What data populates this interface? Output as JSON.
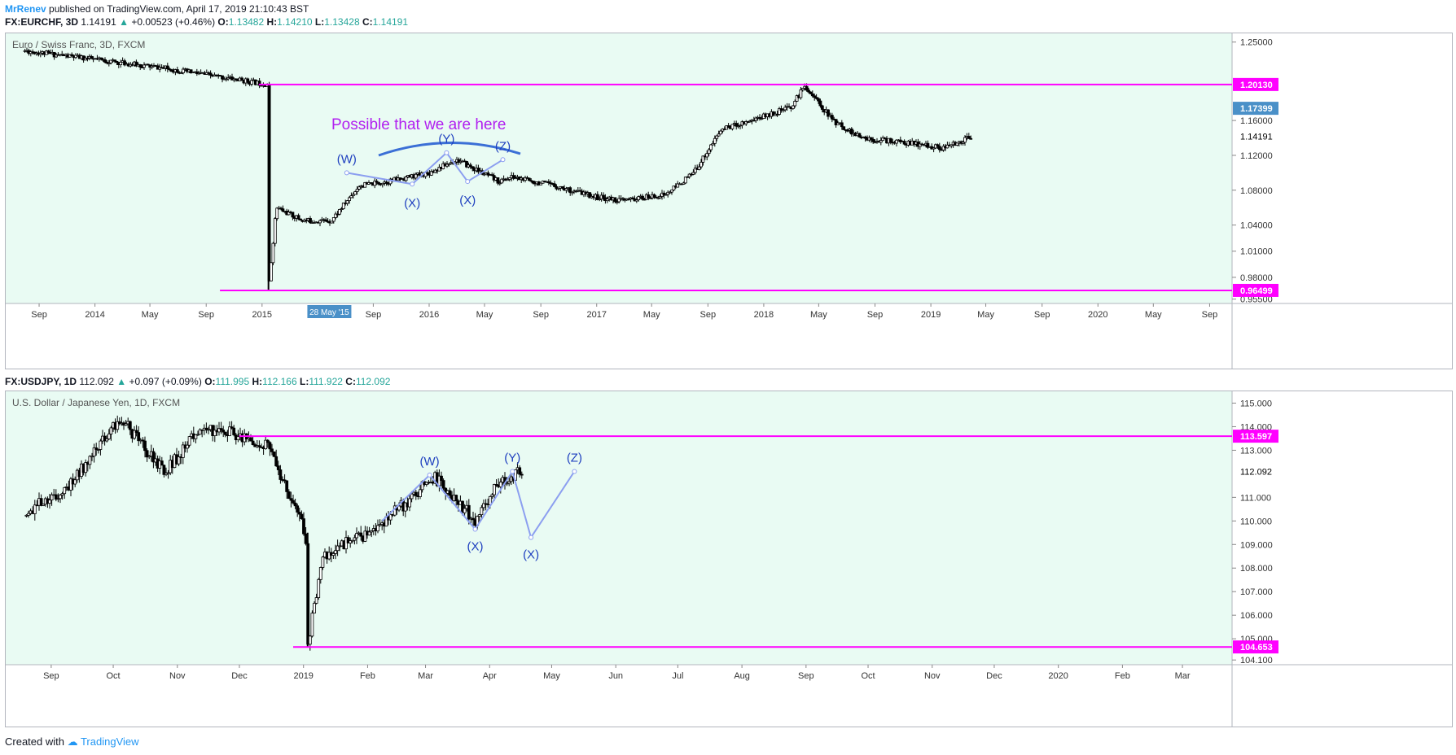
{
  "header": {
    "author": "MrRenev",
    "published": "published on TradingView.com, April 17, 2019 21:10:43 BST"
  },
  "colors": {
    "plot_bg": "#e9fbf3",
    "magenta": "#ff00ff",
    "wave_line": "#8c9ff0",
    "wave_label": "#1e3fbf",
    "annotation": "#b11ff0",
    "arc": "#3b6fd6",
    "price_badge": "#4a90c8"
  },
  "chart1": {
    "quote": {
      "symbol": "FX:EURCHF, 3D",
      "last": "1.14191",
      "change": "+0.00523 (+0.46%)",
      "o": "1.13482",
      "h": "1.14210",
      "l": "1.13428",
      "c": "1.14191"
    },
    "title": "Euro / Swiss Franc, 3D, FXCM",
    "annotation_text": "Possible that we are here",
    "crosshair_date": "28 May '15",
    "y_ticks": [
      "1.25000",
      "1.16000",
      "1.12000",
      "1.08000",
      "1.04000",
      "1.01000",
      "0.98000",
      "0.95500"
    ],
    "x_ticks": [
      "Sep",
      "2014",
      "May",
      "Sep",
      "2015",
      "Sep",
      "2016",
      "May",
      "Sep",
      "2017",
      "May",
      "Sep",
      "2018",
      "May",
      "Sep",
      "2019",
      "May",
      "Sep",
      "2020",
      "May",
      "Sep"
    ],
    "price_tags": [
      "1.20130",
      "1.17399",
      "1.14191",
      "0.96499"
    ],
    "wave_labels": [
      "(W)",
      "(X)",
      "(Y)",
      "(X)",
      "(Z)"
    ]
  },
  "chart2": {
    "quote": {
      "symbol": "FX:USDJPY, 1D",
      "last": "112.092",
      "change": "+0.097 (+0.09%)",
      "o": "111.995",
      "h": "112.166",
      "l": "111.922",
      "c": "112.092"
    },
    "title": "U.S. Dollar / Japanese Yen, 1D, FXCM",
    "y_ticks": [
      "115.000",
      "114.000",
      "113.000",
      "111.000",
      "110.000",
      "109.000",
      "108.000",
      "107.000",
      "106.000",
      "105.000",
      "104.100"
    ],
    "x_ticks": [
      "Sep",
      "Oct",
      "Nov",
      "Dec",
      "2019",
      "Feb",
      "Mar",
      "Apr",
      "May",
      "Jun",
      "Jul",
      "Aug",
      "Sep",
      "Oct",
      "Nov",
      "Dec",
      "2020",
      "Feb",
      "Mar"
    ],
    "price_tags": [
      "113.597",
      "112.092",
      "104.653"
    ],
    "wave_labels": [
      "(W)",
      "(X)",
      "(Y)",
      "(X)",
      "(Z)"
    ]
  },
  "chart_data": [
    {
      "type": "line",
      "title": "Euro / Swiss Franc, 3D, FXCM",
      "x": [
        "2013-08",
        "2014-01",
        "2014-06",
        "2014-10",
        "2015-01-14",
        "2015-01-16",
        "2015-02",
        "2015-04",
        "2015-06",
        "2015-08",
        "2015-10",
        "2016-01",
        "2016-03",
        "2016-06",
        "2016-07",
        "2016-10",
        "2017-01",
        "2017-03",
        "2017-06",
        "2017-08",
        "2017-10",
        "2018-01",
        "2018-03",
        "2018-04",
        "2018-06",
        "2018-08",
        "2018-11",
        "2019-02",
        "2019-04"
      ],
      "series": [
        {
          "values": [
            1.24,
            1.23,
            1.22,
            1.21,
            1.2013,
            0.97,
            1.06,
            1.045,
            1.045,
            1.085,
            1.09,
            1.1,
            1.115,
            1.09,
            1.095,
            1.085,
            1.072,
            1.068,
            1.075,
            1.1,
            1.15,
            1.165,
            1.175,
            1.2,
            1.16,
            1.14,
            1.135,
            1.128,
            1.142
          ]
        }
      ],
      "horizontal_lines": [
        1.2013,
        0.96499
      ],
      "ylim": [
        0.95,
        1.26
      ]
    },
    {
      "type": "line",
      "title": "U.S. Dollar / Japanese Yen, 1D, FXCM",
      "x": [
        "2018-08-20",
        "2018-09-10",
        "2018-10-04",
        "2018-10-26",
        "2018-11-12",
        "2018-12-03",
        "2018-12-14",
        "2019-01-02",
        "2019-01-03",
        "2019-01-10",
        "2019-02-01",
        "2019-02-20",
        "2019-03-05",
        "2019-03-25",
        "2019-04-05",
        "2019-04-17"
      ],
      "series": [
        {
          "values": [
            110.4,
            111.5,
            114.4,
            112.0,
            114.0,
            113.6,
            113.2,
            109.5,
            104.653,
            108.5,
            109.5,
            110.8,
            111.9,
            110.0,
            111.6,
            112.092
          ]
        }
      ],
      "horizontal_lines": [
        113.597,
        104.653
      ],
      "ylim": [
        103.9,
        115.5
      ]
    }
  ]
}
